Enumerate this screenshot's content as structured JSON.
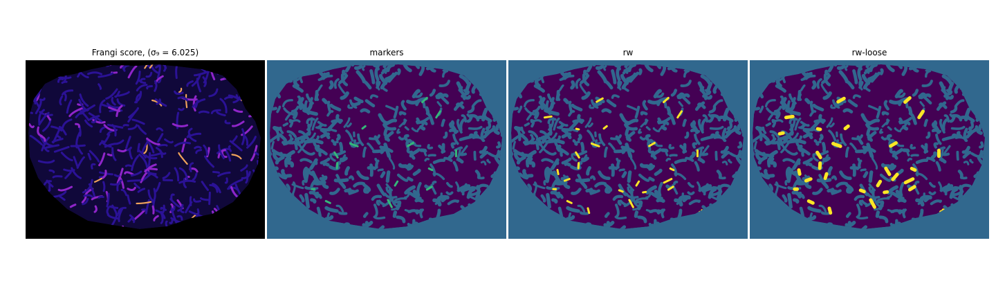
{
  "figure": {
    "panels": [
      {
        "title": "Frangi score, (σ₉ = 6.025)",
        "image": "frangi-vesselness-map"
      },
      {
        "title": "markers",
        "image": "marker-segmentation-map"
      },
      {
        "title": "rw",
        "image": "random-walker-segmentation"
      },
      {
        "title": "rw-loose",
        "image": "random-walker-loose-segmentation"
      }
    ],
    "colors": {
      "frangi_background": "#000000",
      "frangi_low": "#2b1296",
      "frangi_mid": "#8f25c9",
      "frangi_high": "#f0a35b",
      "segmentation_background": "#31688e",
      "segmentation_tissue": "#440154",
      "marker_teal": "#35b779",
      "highlight_yellow": "#fde725"
    }
  }
}
